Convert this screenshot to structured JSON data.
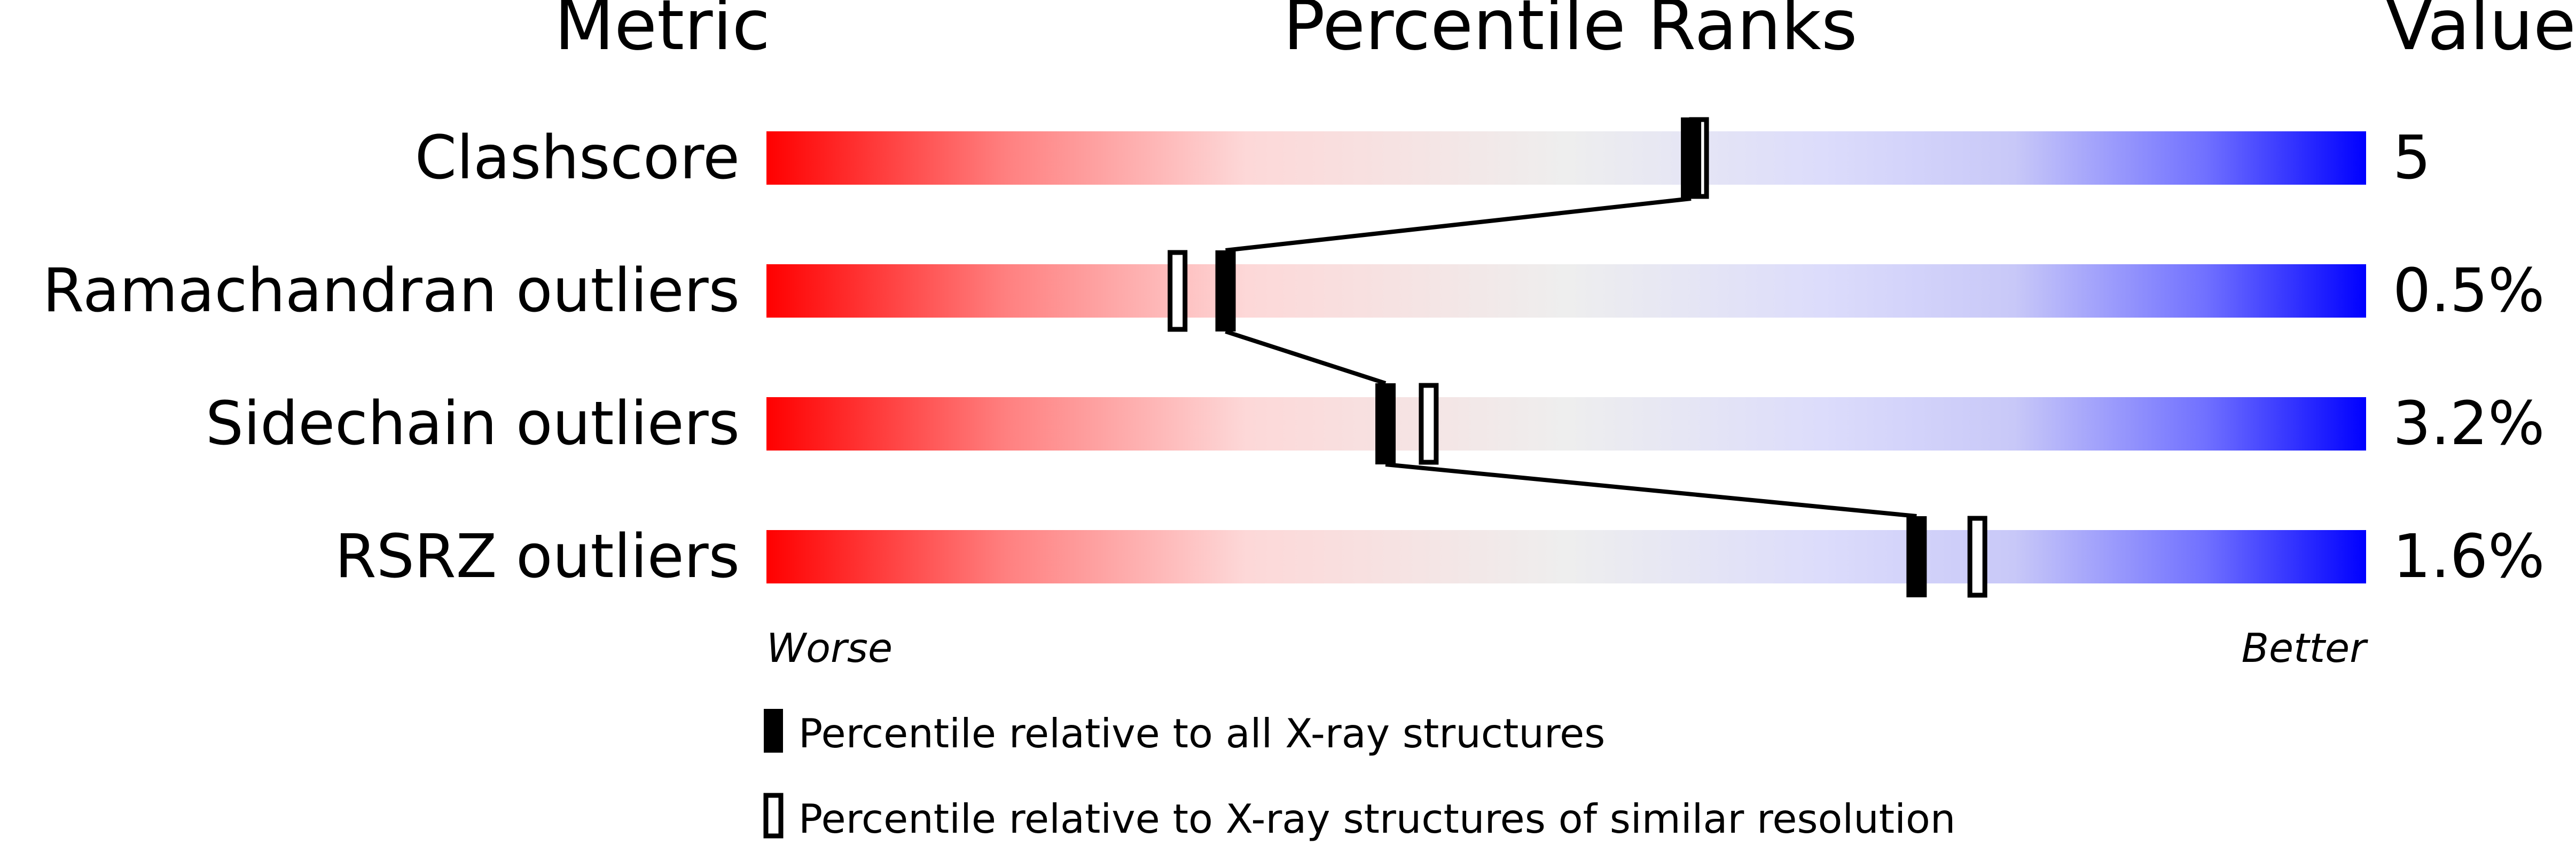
{
  "chart_data": {
    "type": "percentile-slider",
    "headers": {
      "metric": "Metric",
      "ranks": "Percentile Ranks",
      "value": "Value"
    },
    "xlim": [
      0,
      100
    ],
    "rows": [
      {
        "metric": "Clashscore",
        "value": "5",
        "percentile_all": 57.8,
        "percentile_similar": 58.3
      },
      {
        "metric": "Ramachandran outliers",
        "value": "0.5%",
        "percentile_all": 28.7,
        "percentile_similar": 25.7
      },
      {
        "metric": "Sidechain outliers",
        "value": "3.2%",
        "percentile_all": 38.7,
        "percentile_similar": 41.4
      },
      {
        "metric": "RSRZ outliers",
        "value": "1.6%",
        "percentile_all": 71.9,
        "percentile_similar": 75.7
      }
    ],
    "axis_labels": {
      "left": "Worse",
      "right": "Better"
    },
    "legend": {
      "all": "Percentile relative to all X-ray structures",
      "similar": "Percentile relative to X-ray structures of similar resolution"
    },
    "colors": {
      "worse": "#ff0000",
      "middle": "#eeeeee",
      "better": "#0000ff"
    }
  }
}
